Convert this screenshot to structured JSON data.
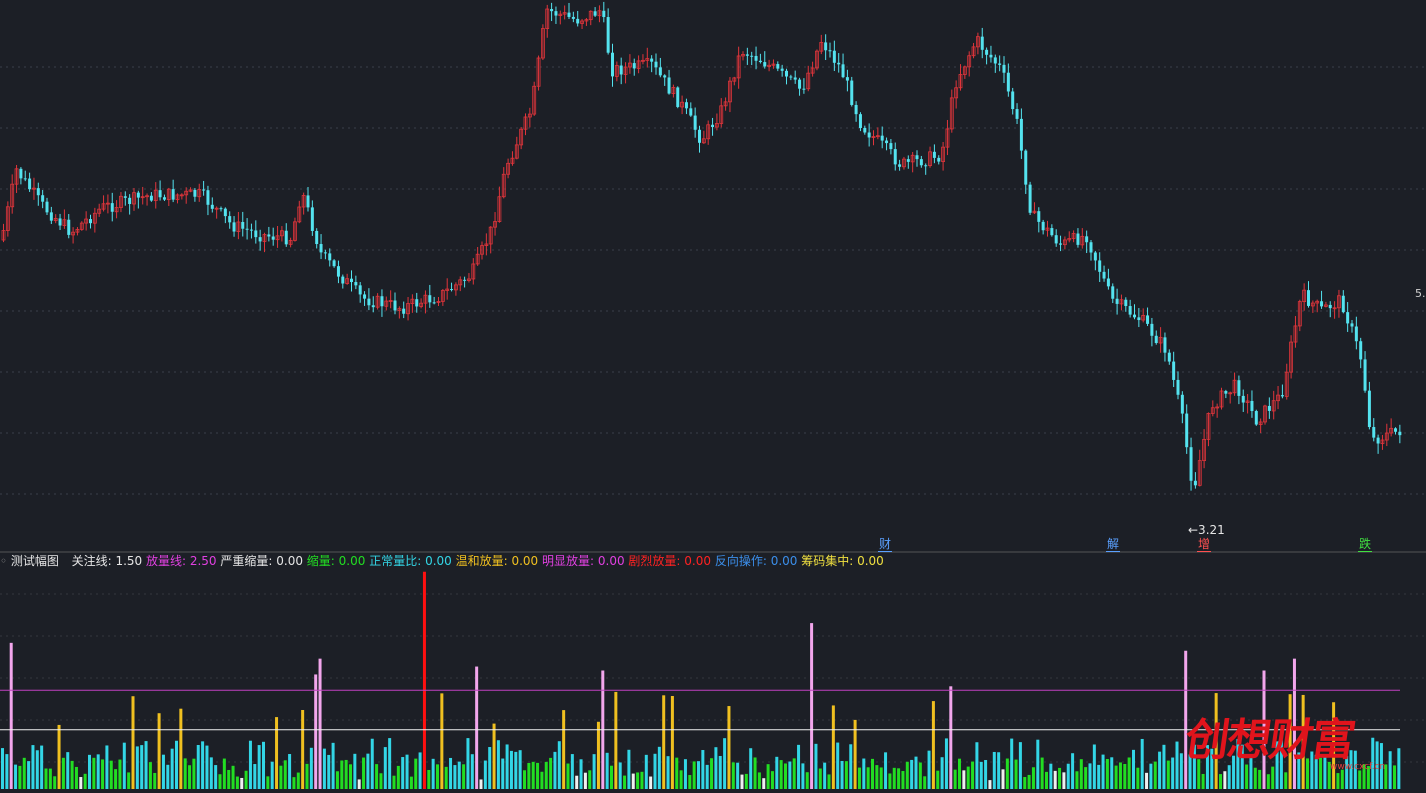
{
  "indicator": {
    "name": "测试幅图",
    "params": [
      {
        "label": "关注线:",
        "value": "1.50",
        "color": "#e6e6e6"
      },
      {
        "label": "放量线:",
        "value": "2.50",
        "color": "#e040e0"
      },
      {
        "label": "严重缩量:",
        "value": "0.00",
        "color": "#e6e6e6"
      },
      {
        "label": "缩量:",
        "value": "0.00",
        "color": "#22dd22"
      },
      {
        "label": "正常量比:",
        "value": "0.00",
        "color": "#33d6e6"
      },
      {
        "label": "温和放量:",
        "value": "0.00",
        "color": "#f0c020"
      },
      {
        "label": "明显放量:",
        "value": "0.00",
        "color": "#e040e0"
      },
      {
        "label": "剧烈放量:",
        "value": "0.00",
        "color": "#ff2222"
      },
      {
        "label": "反向操作:",
        "value": "0.00",
        "color": "#3b8eea"
      },
      {
        "label": "筹码集中:",
        "value": "0.00",
        "color": "#f0e040"
      }
    ]
  },
  "events": [
    {
      "text": "财",
      "color": "#5aa0ff"
    },
    {
      "text": "解",
      "color": "#5aa0ff"
    },
    {
      "text": "增",
      "color": "#ff5050"
    },
    {
      "text": "跌",
      "color": "#40e040"
    }
  ],
  "low_marker": "←3.21",
  "right_tick": "5.",
  "watermark": {
    "text": "创想财富",
    "url": "www.cxcf.cn"
  },
  "chart_data": [
    {
      "type": "candlestick",
      "series": [
        {
          "values": []
        }
      ],
      "low_label": 3.21,
      "colors": {
        "up": "#e0353b",
        "down": "#54e3ef"
      }
    },
    {
      "type": "bar",
      "reference_lines": [
        {
          "label": "关注线",
          "value": 1.5,
          "color": "#f0f0f0"
        },
        {
          "label": "放量线",
          "value": 2.5,
          "color": "#c040c0"
        }
      ],
      "series": [
        {
          "values": []
        }
      ],
      "colors": {
        "缩量": "#22dd22",
        "正常量比": "#33d6e6",
        "温和放量": "#f0c020",
        "明显放量": "#f2a6ec",
        "剧烈放量": "#ff1010",
        "严重缩量": "#f0f0f0"
      }
    }
  ]
}
